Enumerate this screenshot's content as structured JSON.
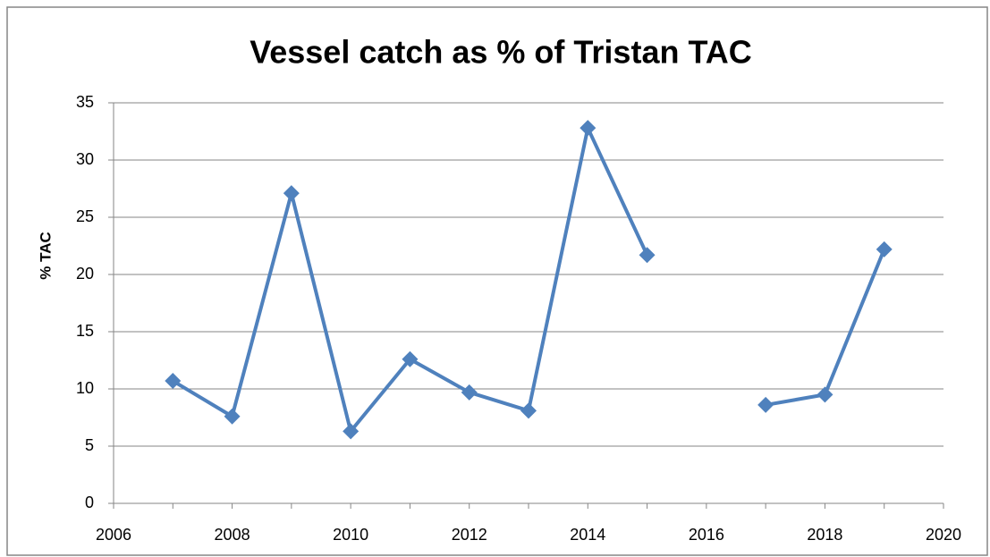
{
  "chart_data": {
    "type": "line",
    "title": "Vessel catch as % of Tristan TAC",
    "y_label": "% TAC",
    "x": [
      2007,
      2008,
      2009,
      2010,
      2011,
      2012,
      2013,
      2014,
      2015,
      2016,
      2017,
      2018,
      2019
    ],
    "series": [
      {
        "name": "Vessel catch",
        "color": "#4f81bd",
        "values": [
          10.7,
          7.6,
          27.1,
          6.3,
          12.6,
          9.7,
          8.1,
          32.8,
          21.7,
          null,
          8.6,
          9.5,
          22.2
        ]
      }
    ],
    "xlim": [
      2006,
      2020
    ],
    "xticks": [
      2006,
      2008,
      2010,
      2012,
      2014,
      2016,
      2018,
      2020
    ],
    "ylim": [
      0,
      35
    ],
    "yticks": [
      0,
      5,
      10,
      15,
      20,
      25,
      30,
      35
    ],
    "grid": true
  }
}
